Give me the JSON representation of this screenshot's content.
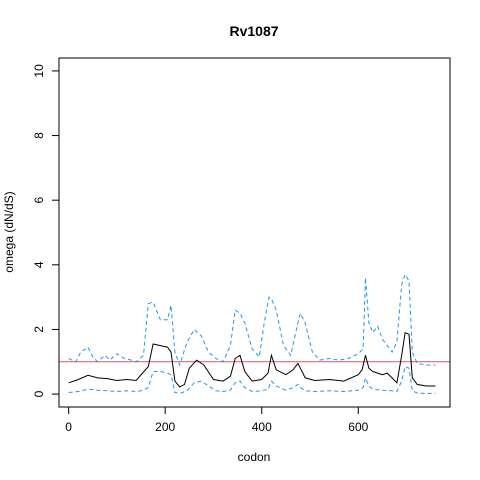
{
  "chart_data": {
    "type": "line",
    "title": "Rv1087",
    "xlabel": "codon",
    "ylabel": "omega (dN/dS)",
    "xlim": [
      -20,
      790
    ],
    "ylim": [
      -0.4,
      10.4
    ],
    "x_ticks": [
      0,
      200,
      400,
      600
    ],
    "y_ticks": [
      0,
      2,
      4,
      6,
      8,
      10
    ],
    "reference_line": {
      "y": 1,
      "color": "#df536b"
    },
    "colors": {
      "estimate": "#000000",
      "bounds": "#2297e6",
      "reference": "#df536b"
    },
    "grid": false,
    "series": [
      {
        "style": "solid",
        "x": [
          0,
          20,
          40,
          60,
          80,
          100,
          120,
          140,
          150,
          165,
          175,
          190,
          205,
          212,
          220,
          230,
          240,
          250,
          265,
          280,
          300,
          320,
          335,
          345,
          355,
          365,
          380,
          400,
          413,
          420,
          430,
          450,
          465,
          475,
          480,
          490,
          510,
          540,
          570,
          600,
          608,
          615,
          622,
          630,
          650,
          660,
          670,
          680,
          690,
          697,
          705,
          712,
          722,
          740,
          760
        ],
        "y": [
          0.35,
          0.45,
          0.58,
          0.5,
          0.48,
          0.42,
          0.45,
          0.42,
          0.6,
          0.85,
          1.55,
          1.5,
          1.45,
          1.3,
          0.4,
          0.22,
          0.3,
          0.8,
          1.05,
          0.9,
          0.45,
          0.4,
          0.55,
          1.1,
          1.2,
          0.7,
          0.4,
          0.45,
          0.65,
          1.2,
          0.75,
          0.6,
          0.75,
          0.95,
          0.8,
          0.5,
          0.42,
          0.45,
          0.4,
          0.6,
          0.75,
          1.2,
          0.8,
          0.7,
          0.6,
          0.65,
          0.5,
          0.35,
          1.2,
          1.9,
          1.85,
          0.5,
          0.3,
          0.25,
          0.25
        ]
      },
      {
        "style": "dashed",
        "x": [
          0,
          15,
          25,
          40,
          50,
          60,
          75,
          85,
          100,
          115,
          130,
          140,
          155,
          165,
          175,
          190,
          205,
          212,
          220,
          230,
          245,
          260,
          275,
          290,
          305,
          320,
          335,
          345,
          355,
          365,
          380,
          395,
          405,
          415,
          420,
          430,
          445,
          460,
          475,
          480,
          490,
          505,
          520,
          540,
          560,
          580,
          600,
          610,
          615,
          622,
          630,
          640,
          650,
          660,
          670,
          680,
          685,
          690,
          697,
          705,
          712,
          722,
          740,
          760
        ],
        "y": [
          1.1,
          1.0,
          1.3,
          1.45,
          1.15,
          1.0,
          1.2,
          1.05,
          1.25,
          1.1,
          1.05,
          1.0,
          1.2,
          2.8,
          2.85,
          2.3,
          2.3,
          2.75,
          1.3,
          0.9,
          1.6,
          2.0,
          1.8,
          1.3,
          1.1,
          1.0,
          1.5,
          2.6,
          2.5,
          2.2,
          1.4,
          1.15,
          2.2,
          3.0,
          2.95,
          2.6,
          1.5,
          1.2,
          2.2,
          2.5,
          2.2,
          1.3,
          1.05,
          1.1,
          1.05,
          1.1,
          1.25,
          1.4,
          3.6,
          2.2,
          1.9,
          2.1,
          1.7,
          1.5,
          1.3,
          1.6,
          2.5,
          3.4,
          3.7,
          3.5,
          1.3,
          0.95,
          0.9,
          0.9
        ]
      },
      {
        "style": "dashed",
        "x": [
          0,
          20,
          40,
          60,
          80,
          100,
          120,
          140,
          150,
          165,
          175,
          190,
          205,
          212,
          220,
          230,
          245,
          260,
          275,
          290,
          305,
          320,
          335,
          345,
          355,
          365,
          380,
          400,
          413,
          420,
          430,
          450,
          465,
          475,
          480,
          490,
          510,
          540,
          570,
          600,
          610,
          615,
          622,
          630,
          650,
          670,
          680,
          690,
          697,
          705,
          712,
          722,
          740,
          760
        ],
        "y": [
          0.05,
          0.08,
          0.15,
          0.12,
          0.1,
          0.08,
          0.1,
          0.08,
          0.1,
          0.2,
          0.7,
          0.7,
          0.65,
          0.6,
          0.05,
          0.02,
          0.1,
          0.35,
          0.4,
          0.25,
          0.1,
          0.08,
          0.12,
          0.35,
          0.4,
          0.2,
          0.08,
          0.1,
          0.15,
          0.4,
          0.25,
          0.12,
          0.2,
          0.3,
          0.2,
          0.1,
          0.08,
          0.1,
          0.08,
          0.12,
          0.2,
          0.5,
          0.25,
          0.15,
          0.12,
          0.1,
          0.08,
          0.4,
          0.85,
          0.8,
          0.1,
          0.03,
          0.02,
          0.02
        ]
      }
    ]
  }
}
